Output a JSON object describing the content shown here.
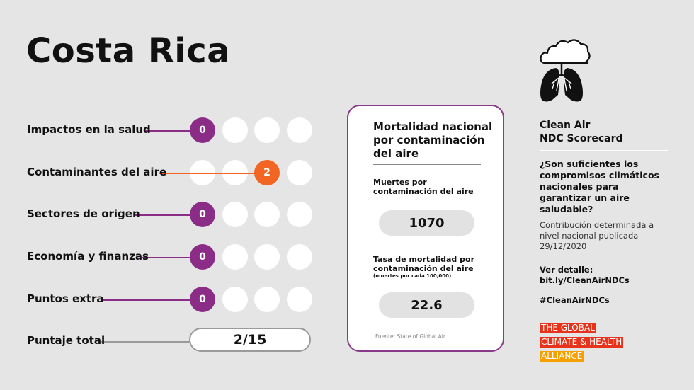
{
  "title": "Costa Rica",
  "rows": [
    {
      "label": "Impactos en la salud",
      "score": "0"
    },
    {
      "label": "Contaminantes del aire",
      "score": "2"
    },
    {
      "label": "Sectores de origen",
      "score": "0"
    },
    {
      "label": "Economía y finanzas",
      "score": "0"
    },
    {
      "label": "Puntos extra",
      "score": "0"
    }
  ],
  "total": {
    "label": "Puntaje total",
    "value": "2/15"
  },
  "card": {
    "title": "Mortalidad nacional por contaminación del aire",
    "deaths_label": "Muertes por contaminación del aire",
    "deaths_value": "1070",
    "rate_label": "Tasa de mortalidad por contaminación del aire",
    "rate_note": "(muertes por cada 100,000)",
    "rate_value": "22.6",
    "source": "Fuente: State of Global Air"
  },
  "side": {
    "heading_1": "Clean Air",
    "heading_2": "NDC Scorecard",
    "question": "¿Son suficientes los compromisos climáticos nacionales para garantizar un aire saludable?",
    "contribution": "Contribución determinada a nivel nacional publicada 29/12/2020",
    "detail_label": "Ver detalle:",
    "detail_link": "bit.ly/CleanAirNDCs",
    "hashtag": "#CleanAirNDCs"
  },
  "brand": {
    "line1": "THE GLOBAL",
    "line2": "CLIMATE & HEALTH",
    "line3": "ALLIANCE"
  },
  "colors": {
    "purple": "#8b2d87",
    "orange": "#f26522",
    "background": "#e5e5e5"
  },
  "icons": {
    "lungs": "lungs-cloud-icon"
  }
}
